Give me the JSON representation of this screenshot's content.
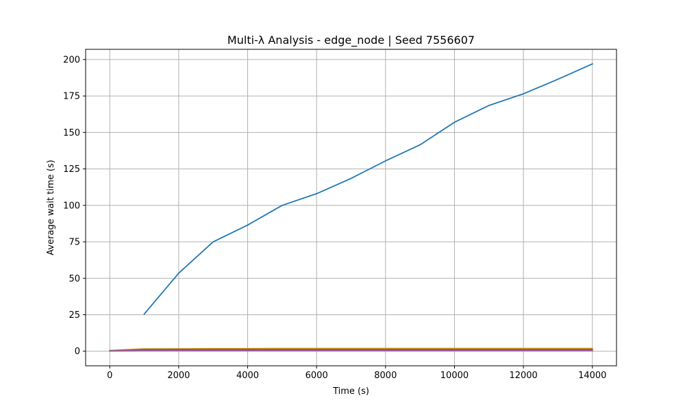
{
  "chart_data": {
    "type": "line",
    "title": "Multi-λ Analysis - edge_node | Seed 7556607",
    "xlabel": "Time (s)",
    "ylabel": "Average wait time (s)",
    "xlim": [
      -700,
      14700
    ],
    "ylim": [
      -10,
      207
    ],
    "xticks": [
      0,
      2000,
      4000,
      6000,
      8000,
      10000,
      12000,
      14000
    ],
    "yticks": [
      0,
      25,
      50,
      75,
      100,
      125,
      150,
      175,
      200
    ],
    "grid": true,
    "series": [
      {
        "color": "#1f77b4",
        "x": [
          1000,
          2000,
          3000,
          4000,
          5000,
          6000,
          7000,
          8000,
          9000,
          10000,
          11000,
          12000,
          13000,
          14000
        ],
        "y": [
          25.5,
          53.5,
          75,
          86.5,
          100,
          108,
          118.5,
          130.5,
          141.5,
          157,
          168.5,
          176.5,
          186.5,
          197
        ]
      },
      {
        "color": "#ff7f0e",
        "x": [
          0,
          1000,
          2000,
          3000,
          4000,
          5000,
          6000,
          7000,
          8000,
          9000,
          10000,
          11000,
          12000,
          13000,
          14000
        ],
        "y": [
          0.5,
          1.6,
          1.7,
          1.8,
          1.8,
          1.9,
          1.9,
          1.9,
          1.9,
          1.9,
          1.9,
          1.9,
          1.9,
          1.9,
          1.9
        ]
      },
      {
        "color": "#2ca02c",
        "x": [
          0,
          1000,
          2000,
          3000,
          4000,
          5000,
          6000,
          7000,
          8000,
          9000,
          10000,
          11000,
          12000,
          13000,
          14000
        ],
        "y": [
          0.3,
          1.2,
          1.2,
          1.2,
          1.2,
          1.2,
          1.2,
          1.2,
          1.2,
          1.2,
          1.2,
          1.2,
          1.2,
          1.2,
          1.2
        ]
      },
      {
        "color": "#d62728",
        "x": [
          0,
          1000,
          2000,
          3000,
          4000,
          5000,
          6000,
          7000,
          8000,
          9000,
          10000,
          11000,
          12000,
          13000,
          14000
        ],
        "y": [
          0.2,
          0.7,
          0.7,
          0.7,
          0.7,
          0.7,
          0.7,
          0.7,
          0.7,
          0.7,
          0.7,
          0.7,
          0.7,
          0.7,
          0.7
        ]
      },
      {
        "color": "#9467bd",
        "x": [
          0,
          1000,
          2000,
          3000,
          4000,
          5000,
          6000,
          7000,
          8000,
          9000,
          10000,
          11000,
          12000,
          13000,
          14000
        ],
        "y": [
          0.1,
          0.3,
          0.3,
          0.3,
          0.3,
          0.3,
          0.3,
          0.3,
          0.3,
          0.3,
          0.3,
          0.3,
          0.3,
          0.3,
          0.3
        ]
      }
    ]
  }
}
